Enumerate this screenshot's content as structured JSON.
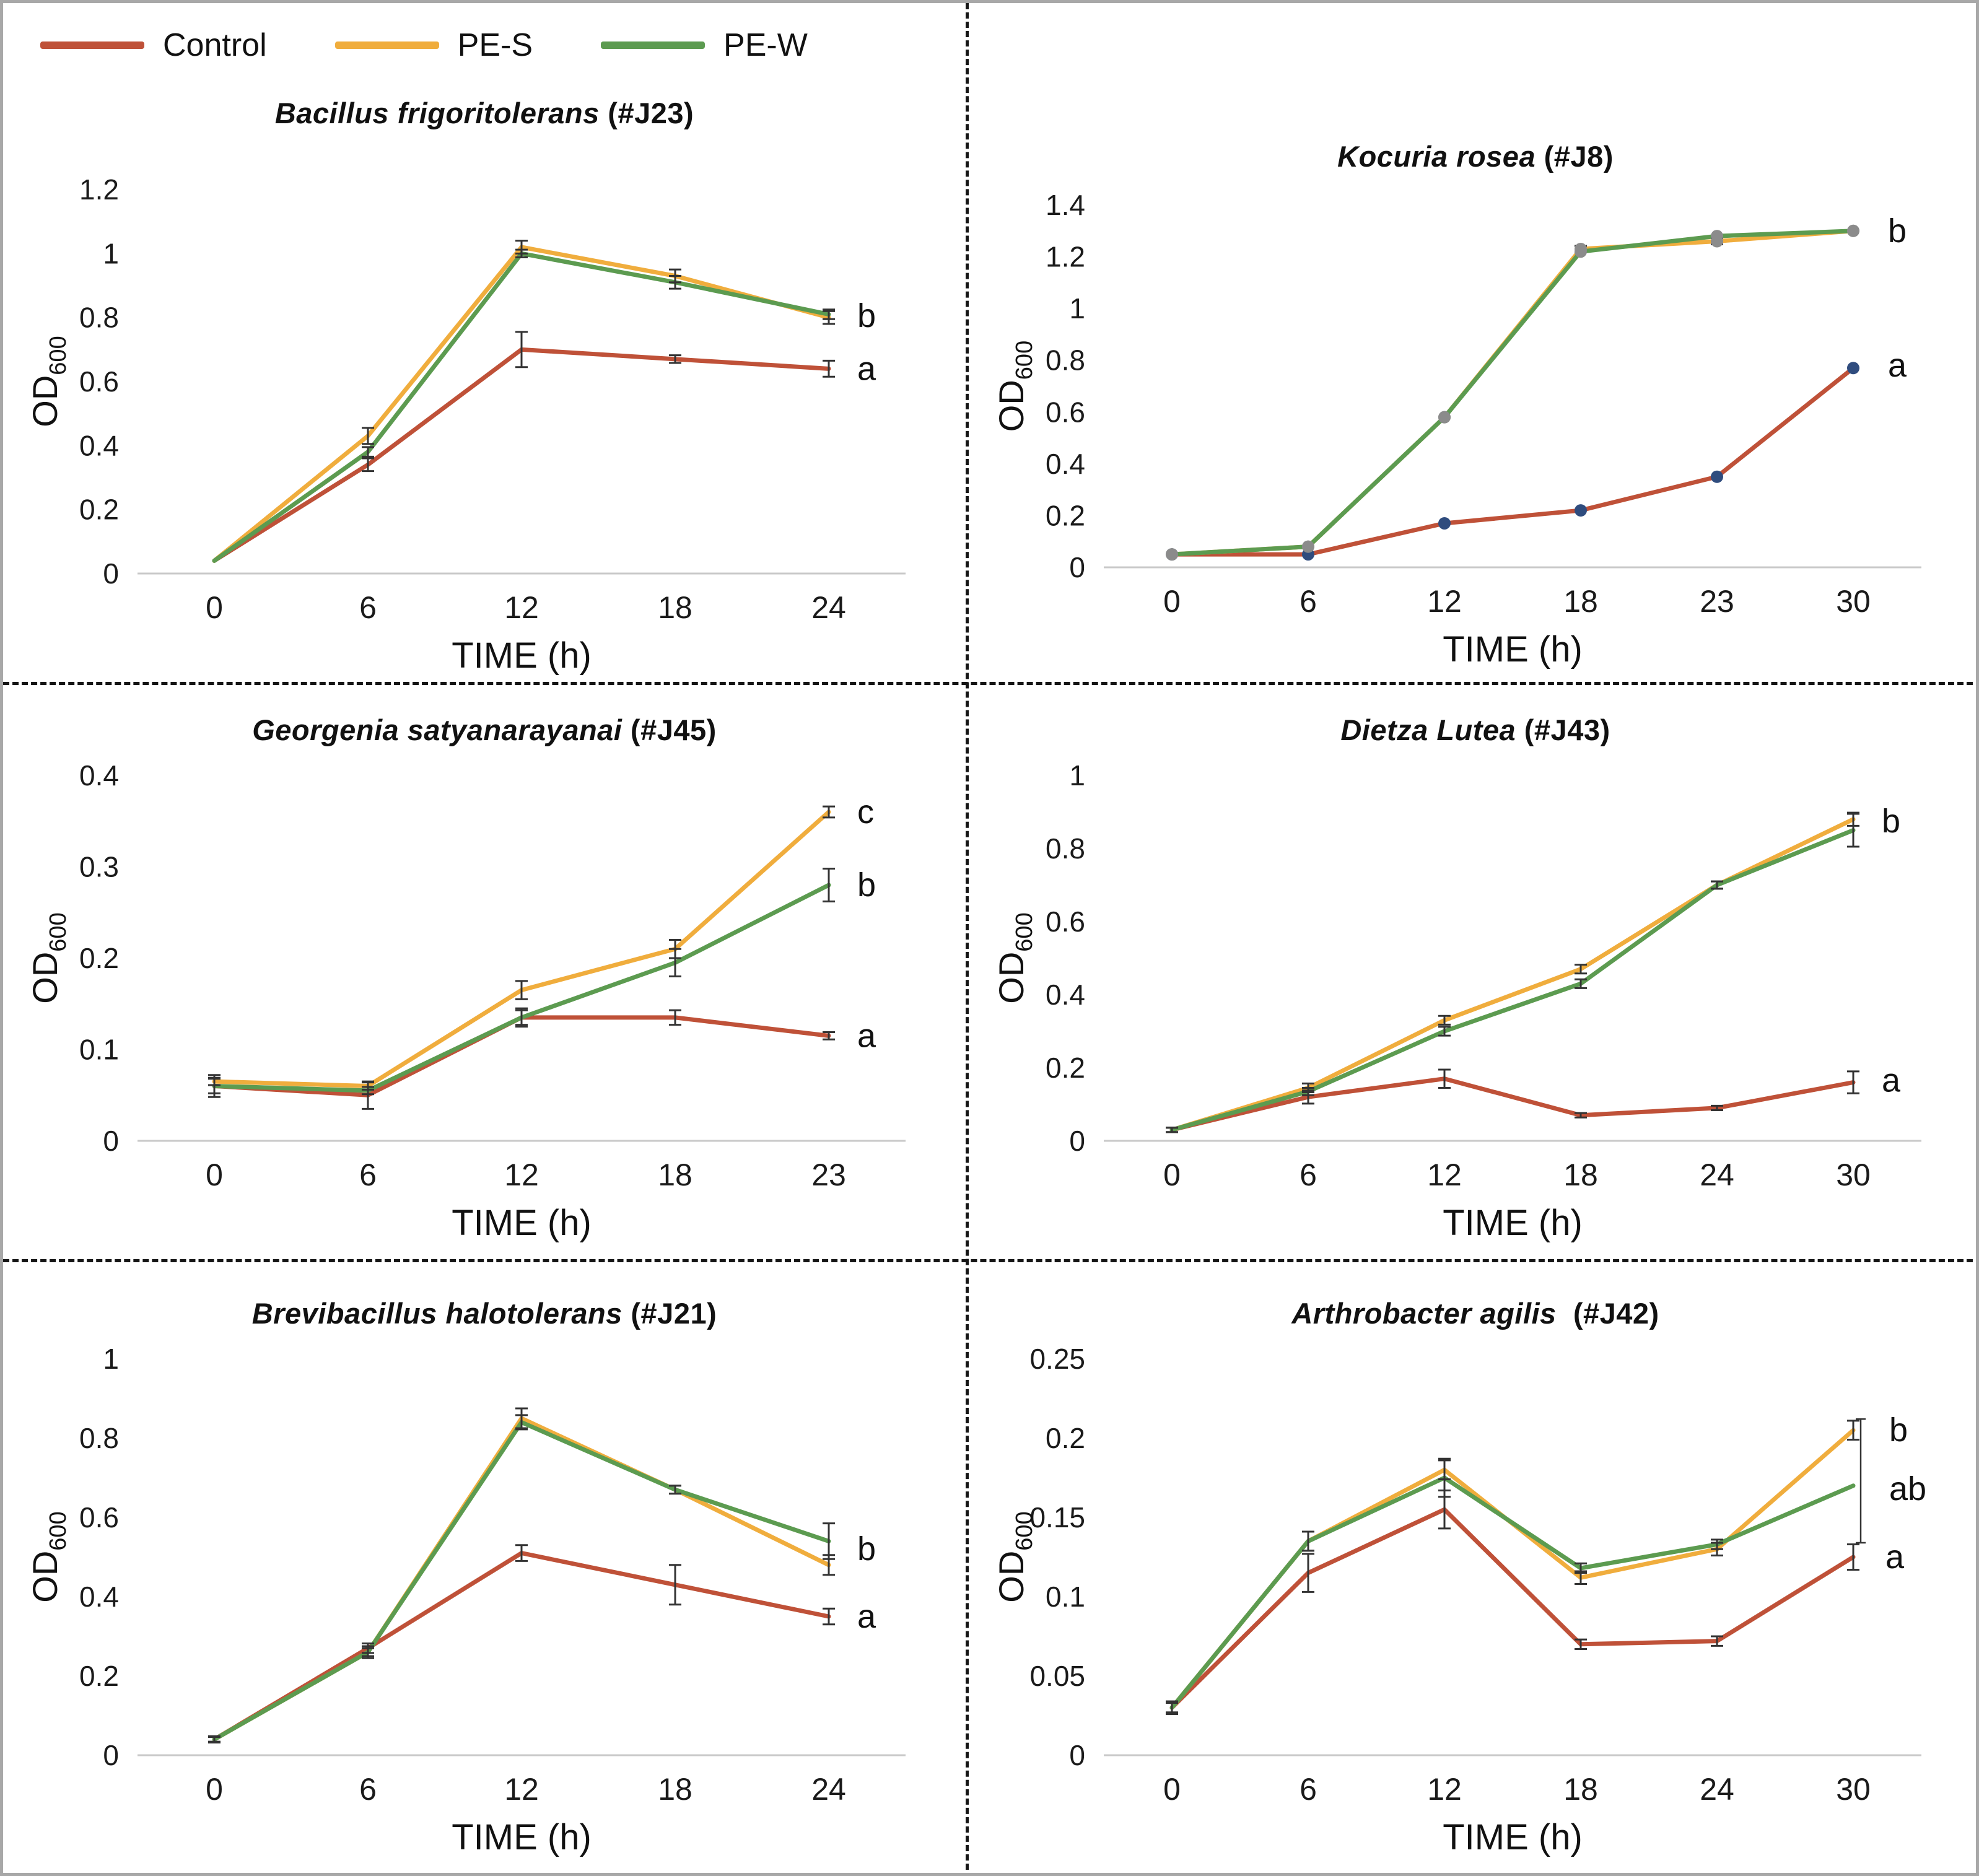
{
  "legend": {
    "items": [
      {
        "label": "Control",
        "color": "#bf5138"
      },
      {
        "label": "PE-S",
        "color": "#f0ad3d"
      },
      {
        "label": "PE-W",
        "color": "#5c9b50"
      }
    ]
  },
  "chart_data": [
    {
      "type": "line",
      "title_italic": "Bacillus frigoritolerans",
      "title_suffix": " (#J23)",
      "xlabel": "TIME (h)",
      "ylabel_main": "OD",
      "ylabel_sub": "600",
      "x": [
        0,
        6,
        12,
        18,
        24
      ],
      "ylim": [
        0,
        1.2
      ],
      "yticks": [
        0,
        0.2,
        0.4,
        0.6,
        0.8,
        1,
        1.2
      ],
      "series": [
        {
          "name": "Control",
          "color": "#bf5138",
          "values": [
            0.04,
            0.34,
            0.7,
            0.67,
            0.64
          ],
          "err": [
            0,
            0.02,
            0.055,
            0.012,
            0.025
          ]
        },
        {
          "name": "PE-S",
          "color": "#f0ad3d",
          "values": [
            0.04,
            0.43,
            1.02,
            0.93,
            0.8
          ],
          "err": [
            0,
            0.025,
            0.02,
            0.02,
            0.02
          ]
        },
        {
          "name": "PE-W",
          "color": "#5c9b50",
          "values": [
            0.04,
            0.38,
            1.0,
            0.91,
            0.81
          ],
          "err": [
            0,
            0.015,
            0.012,
            0.02,
            0.015
          ]
        }
      ],
      "annotations": [
        {
          "text": "b",
          "x_index": 4,
          "y": 0.805
        },
        {
          "text": "a",
          "x_index": 4,
          "y": 0.64
        }
      ]
    },
    {
      "type": "line",
      "title_italic": "Kocuria rosea",
      "title_suffix": " (#J8)",
      "xlabel": "TIME (h)",
      "ylabel_main": "OD",
      "ylabel_sub": "600",
      "x": [
        0,
        6,
        12,
        18,
        23,
        30
      ],
      "ylim": [
        0,
        1.4
      ],
      "yticks": [
        0,
        0.2,
        0.4,
        0.6,
        0.8,
        1,
        1.2,
        1.4
      ],
      "series": [
        {
          "name": "Control",
          "color": "#bf5138",
          "values": [
            0.05,
            0.05,
            0.17,
            0.22,
            0.35,
            0.77
          ],
          "err": [
            0,
            0,
            0,
            0,
            0,
            0
          ],
          "marker_color": "#2f4c7e"
        },
        {
          "name": "PE-S",
          "color": "#f0ad3d",
          "values": [
            0.05,
            0.08,
            0.58,
            1.23,
            1.26,
            1.3
          ],
          "err": [
            0,
            0,
            0,
            0.012,
            0.012,
            0
          ],
          "marker_color": "#8b8b8b"
        },
        {
          "name": "PE-W",
          "color": "#5c9b50",
          "values": [
            0.05,
            0.08,
            0.58,
            1.22,
            1.28,
            1.3
          ],
          "err": [
            0,
            0,
            0,
            0,
            0,
            0
          ],
          "marker_color": "#8b8b8b"
        }
      ],
      "annotations": [
        {
          "text": "b",
          "x_index": 5,
          "y": 1.3,
          "dx": 56
        },
        {
          "text": "a",
          "x_index": 5,
          "y": 0.78,
          "dx": 56
        }
      ]
    },
    {
      "type": "line",
      "title_italic": "Georgenia satyanarayanai",
      "title_suffix": " (#J45)",
      "xlabel": "TIME (h)",
      "ylabel_main": "OD",
      "ylabel_sub": "600",
      "x": [
        0,
        6,
        12,
        18,
        23
      ],
      "ylim": [
        0,
        0.4
      ],
      "yticks": [
        0,
        0.1,
        0.2,
        0.3,
        0.4
      ],
      "series": [
        {
          "name": "Control",
          "color": "#bf5138",
          "values": [
            0.06,
            0.05,
            0.135,
            0.135,
            0.115
          ],
          "err": [
            0.012,
            0.015,
            0.008,
            0.008,
            0.004
          ]
        },
        {
          "name": "PE-S",
          "color": "#f0ad3d",
          "values": [
            0.065,
            0.06,
            0.165,
            0.21,
            0.36
          ],
          "err": [
            0.004,
            0.004,
            0.01,
            0.01,
            0.006
          ]
        },
        {
          "name": "PE-W",
          "color": "#5c9b50",
          "values": [
            0.06,
            0.055,
            0.135,
            0.195,
            0.28
          ],
          "err": [
            0.008,
            0.004,
            0.01,
            0.015,
            0.018
          ]
        }
      ],
      "annotations": [
        {
          "text": "c",
          "x_index": 4,
          "y": 0.36
        },
        {
          "text": "b",
          "x_index": 4,
          "y": 0.28
        },
        {
          "text": "a",
          "x_index": 4,
          "y": 0.115
        }
      ]
    },
    {
      "type": "line",
      "title_italic": "Dietza Lutea",
      "title_suffix": " (#J43)",
      "xlabel": "TIME (h)",
      "ylabel_main": "OD",
      "ylabel_sub": "600",
      "x": [
        0,
        6,
        12,
        18,
        24,
        30
      ],
      "ylim": [
        0,
        1
      ],
      "yticks": [
        0,
        0.2,
        0.4,
        0.6,
        0.8,
        1
      ],
      "series": [
        {
          "name": "Control",
          "color": "#bf5138",
          "values": [
            0.03,
            0.12,
            0.17,
            0.07,
            0.09,
            0.16
          ],
          "err": [
            0.006,
            0.018,
            0.025,
            0.006,
            0.006,
            0.03
          ]
        },
        {
          "name": "PE-S",
          "color": "#f0ad3d",
          "values": [
            0.03,
            0.145,
            0.33,
            0.47,
            0.7,
            0.88
          ],
          "err": [
            0.006,
            0.012,
            0.012,
            0.012,
            0.01,
            0.018
          ]
        },
        {
          "name": "PE-W",
          "color": "#5c9b50",
          "values": [
            0.03,
            0.135,
            0.3,
            0.43,
            0.7,
            0.85
          ],
          "err": [
            0.006,
            0.01,
            0.012,
            0.012,
            0.01,
            0.045
          ]
        }
      ],
      "annotations": [
        {
          "text": "b",
          "x_index": 5,
          "y": 0.875
        },
        {
          "text": "a",
          "x_index": 5,
          "y": 0.165
        }
      ]
    },
    {
      "type": "line",
      "title_italic": "Brevibacillus halotolerans",
      "title_suffix": " (#J21)",
      "xlabel": "TIME (h)",
      "ylabel_main": "OD",
      "ylabel_sub": "600",
      "x": [
        0,
        6,
        12,
        18,
        24
      ],
      "ylim": [
        0,
        1
      ],
      "yticks": [
        0,
        0.2,
        0.4,
        0.6,
        0.8,
        1
      ],
      "series": [
        {
          "name": "Control",
          "color": "#bf5138",
          "values": [
            0.04,
            0.27,
            0.51,
            0.43,
            0.35
          ],
          "err": [
            0.008,
            0.012,
            0.02,
            0.05,
            0.02
          ]
        },
        {
          "name": "PE-S",
          "color": "#f0ad3d",
          "values": [
            0.04,
            0.26,
            0.85,
            0.67,
            0.48
          ],
          "err": [
            0.006,
            0.01,
            0.025,
            0.01,
            0.025
          ]
        },
        {
          "name": "PE-W",
          "color": "#5c9b50",
          "values": [
            0.04,
            0.26,
            0.84,
            0.67,
            0.54
          ],
          "err": [
            0.006,
            0.015,
            0.018,
            0.01,
            0.045
          ]
        }
      ],
      "annotations": [
        {
          "text": "b",
          "x_index": 4,
          "y": 0.52
        },
        {
          "text": "a",
          "x_index": 4,
          "y": 0.35
        }
      ]
    },
    {
      "type": "line",
      "title_italic": "Arthrobacter agilis",
      "title_suffix": "  (#J42)",
      "xlabel": "TIME (h)",
      "ylabel_main": "OD",
      "ylabel_sub": "600",
      "x": [
        0,
        6,
        12,
        18,
        24,
        30
      ],
      "ylim": [
        0,
        0.25
      ],
      "yticks": [
        0,
        0.05,
        0.1,
        0.15,
        0.2,
        0.25
      ],
      "series": [
        {
          "name": "Control",
          "color": "#bf5138",
          "values": [
            0.03,
            0.115,
            0.155,
            0.07,
            0.072,
            0.125
          ],
          "err": [
            0.004,
            0.012,
            0.012,
            0.003,
            0.003,
            0.008
          ]
        },
        {
          "name": "PE-S",
          "color": "#f0ad3d",
          "values": [
            0.03,
            0.135,
            0.18,
            0.112,
            0.13,
            0.205
          ],
          "err": [
            0.003,
            0.006,
            0.006,
            0.004,
            0.004,
            0.006
          ]
        },
        {
          "name": "PE-W",
          "color": "#5c9b50",
          "values": [
            0.03,
            0.135,
            0.175,
            0.118,
            0.133,
            0.17
          ],
          "err": [
            0.003,
            0.006,
            0.012,
            0.003,
            0.003,
            0
          ]
        }
      ],
      "lines": [
        {
          "x_index": 5,
          "dx": 12,
          "y1": 0.134,
          "y2": 0.212
        }
      ],
      "annotations": [
        {
          "text": "b",
          "x_index": 5,
          "y": 0.205,
          "dx": 58
        },
        {
          "text": "ab",
          "x_index": 5,
          "y": 0.168,
          "dx": 58
        },
        {
          "text": "a",
          "x_index": 5,
          "y": 0.125,
          "dx": 52
        }
      ]
    }
  ]
}
